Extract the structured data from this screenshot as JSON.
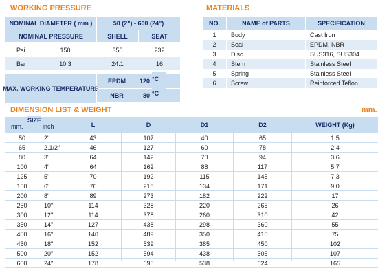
{
  "working_pressure": {
    "title": "WORKING PRESSURE",
    "nominal_diameter_label": "NOMINAL DIAMETER ( mm )",
    "nominal_diameter_value": "50 (2\") - 600 (24\")",
    "header": [
      "NOMINAL PRESSURE",
      "SHELL",
      "SEAT"
    ],
    "rows": [
      [
        "Psi",
        "150",
        "350",
        "232"
      ],
      [
        "Bar",
        "10.3",
        "24.1",
        "16"
      ]
    ],
    "max_temp_label": "MAX. WORKING TEMPERATURE",
    "temps": [
      {
        "material": "EPDM",
        "value": "120",
        "unit": "°C"
      },
      {
        "material": "NBR",
        "value": "80",
        "unit": "°C"
      }
    ]
  },
  "materials": {
    "title": "MATERIALS",
    "header": [
      "NO.",
      "NAME of PARTS",
      "SPECIFICATION"
    ],
    "rows": [
      [
        "1",
        "Body",
        "Cast Iron"
      ],
      [
        "2",
        "Seal",
        "EPDM, NBR"
      ],
      [
        "3",
        "Disc",
        "SUS316, SUS304"
      ],
      [
        "4",
        "Stem",
        "Stainless Steel"
      ],
      [
        "5",
        "Spring",
        "Stainless Steel"
      ],
      [
        "6",
        "Screw",
        "Reinforced Teflon"
      ]
    ]
  },
  "dimensions": {
    "title": "DIMENSION LIST & WEIGHT",
    "unit": "mm.",
    "size_header": {
      "title": "SIZE",
      "mm": "mm.",
      "inch": "inch"
    },
    "header": [
      "L",
      "D",
      "D1",
      "D2",
      "WEIGHT (Kg)"
    ],
    "rows": [
      [
        "50",
        "2\"",
        "43",
        "107",
        "40",
        "65",
        "1.5"
      ],
      [
        "65",
        "2.1/2\"",
        "46",
        "127",
        "60",
        "78",
        "2.4"
      ],
      [
        "80",
        "3\"",
        "64",
        "142",
        "70",
        "94",
        "3.6"
      ],
      [
        "100",
        "4\"",
        "64",
        "162",
        "88",
        "117",
        "5.7"
      ],
      [
        "125",
        "5\"",
        "70",
        "192",
        "115",
        "145",
        "7.3"
      ],
      [
        "150",
        "6\"",
        "76",
        "218",
        "134",
        "171",
        "9.0"
      ],
      [
        "200",
        "8\"",
        "89",
        "273",
        "182",
        "222",
        "17"
      ],
      [
        "250",
        "10\"",
        "114",
        "328",
        "220",
        "265",
        "26"
      ],
      [
        "300",
        "12\"",
        "114",
        "378",
        "260",
        "310",
        "42"
      ],
      [
        "350",
        "14\"",
        "127",
        "438",
        "298",
        "360",
        "55"
      ],
      [
        "400",
        "16\"",
        "140",
        "489",
        "350",
        "410",
        "75"
      ],
      [
        "450",
        "18\"",
        "152",
        "539",
        "385",
        "450",
        "102"
      ],
      [
        "500",
        "20\"",
        "152",
        "594",
        "438",
        "505",
        "107"
      ],
      [
        "600",
        "24\"",
        "178",
        "695",
        "538",
        "624",
        "165"
      ]
    ]
  }
}
